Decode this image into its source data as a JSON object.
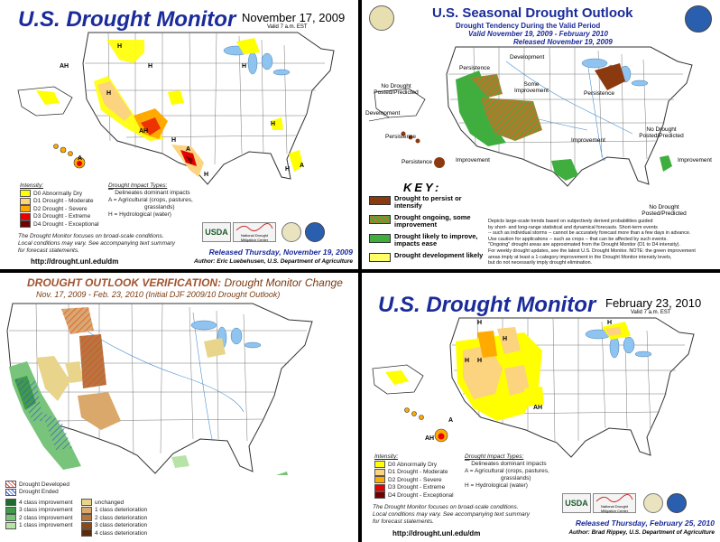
{
  "usdm1": {
    "title": "U.S. Drought Monitor",
    "date": "November 17, 2009",
    "valid": "Valid 7 a.m. EST",
    "intensity_heading": "Intensity:",
    "intensity": [
      {
        "label": "D0 Abnormally Dry",
        "color": "#ffff00"
      },
      {
        "label": "D1 Drought - Moderate",
        "color": "#fcd37f"
      },
      {
        "label": "D2 Drought - Severe",
        "color": "#ffaa00"
      },
      {
        "label": "D3 Drought - Extreme",
        "color": "#e60000"
      },
      {
        "label": "D4 Drought - Exceptional",
        "color": "#730000"
      }
    ],
    "impact_heading": "Drought Impact Types:",
    "impacts": [
      "Delineates dominant impacts",
      "A = Agricultural (crops, pastures,",
      "grasslands)",
      "H = Hydrological (water)"
    ],
    "note": [
      "The Drought Monitor focuses on broad-scale conditions.",
      "Local conditions may vary. See accompanying text summary",
      "for forecast statements."
    ],
    "url": "http://drought.unl.edu/dm",
    "released": "Released Thursday, November 19, 2009",
    "author": "Author: Eric Luebehusen, U.S. Department of Agriculture",
    "map_labels": [
      "AH",
      "H",
      "H",
      "H",
      "AH",
      "A",
      "H",
      "H",
      "H",
      "A",
      "H",
      "H",
      "A"
    ]
  },
  "outlook": {
    "title": "U.S. Seasonal Drought Outlook",
    "subtitle": "Drought Tendency During the Valid Period",
    "valid": "Valid November 19, 2009 - February 2010",
    "released": "Released November 19, 2009",
    "key_heading": "KEY:",
    "key": [
      {
        "label": "Drought to persist or intensify",
        "color": "#8b3a0f"
      },
      {
        "label": "Drought ongoing, some improvement",
        "color": "#b07a2a"
      },
      {
        "label": "Drought likely to improve, impacts ease",
        "color": "#3fae3f"
      },
      {
        "label": "Drought development likely",
        "color": "#ffff66"
      }
    ],
    "notes": [
      "Depicts large-scale trends based on subjectively derived probabilities guided",
      "by short- and long-range statistical and dynamical forecasts. Short-term events",
      "-- such as individual storms -- cannot be accurately forecast more than a few days in advance.",
      "Use caution for applications -- such as crops -- that can be affected by such events.",
      "\"Ongoing\" drought areas are approximated from the Drought Monitor (D1 to D4 intensity).",
      "For weekly drought updates, see the latest U.S. Drought Monitor. NOTE: the green improvement",
      "areas imply at least a 1-category improvement in the Drought Monitor intensity levels,",
      "but do not necessarily imply drought elimination."
    ],
    "map_labels": {
      "development_top": "Development",
      "persistence_1": "Persistence",
      "no_drought_left": "No Drought Posted/Predicted",
      "some_improvement": "Some Improvement",
      "persistence_2": "Persistence",
      "development_left": "Development",
      "persistence_3": "Persistence",
      "improvement_1": "Improvement",
      "persistence_4": "Persistence",
      "improvement_2": "Improvement",
      "no_drought_right": "No Drought Posted/Predicted",
      "improvement_3": "Improvement",
      "no_drought_pr": "No Drought Posted/Predicted"
    }
  },
  "verification": {
    "title_a": "DROUGHT OUTLOOK VERIFICATION:",
    "title_b": "Drought Monitor Change",
    "subtitle": "Nov. 17, 2009 - Feb. 23, 2010 (Initial DJF 2009/10 Drought Outlook)",
    "legend_top": [
      "Drought Developed",
      "Drought Ended"
    ],
    "legend_left": [
      {
        "label": "4 class improvement",
        "color": "#1f6b2f"
      },
      {
        "label": "3 class improvement",
        "color": "#3f9a4a"
      },
      {
        "label": "2 class improvement",
        "color": "#78c47a"
      },
      {
        "label": "1 class improvement",
        "color": "#b8e3a8"
      }
    ],
    "legend_right": [
      {
        "label": "unchanged",
        "color": "#e8d48a"
      },
      {
        "label": "1 class deterioration",
        "color": "#d9a86a"
      },
      {
        "label": "2 class deterioration",
        "color": "#b8763a"
      },
      {
        "label": "3 class deterioration",
        "color": "#8a4a1a"
      },
      {
        "label": "4 class deterioration",
        "color": "#5a2a0a"
      }
    ]
  },
  "usdm2": {
    "title": "U.S. Drought Monitor",
    "date": "February 23, 2010",
    "valid": "Valid 7 a.m. EST",
    "intensity_heading": "Intensity:",
    "intensity": [
      {
        "label": "D0 Abnormally Dry",
        "color": "#ffff00"
      },
      {
        "label": "D1 Drought - Moderate",
        "color": "#fcd37f"
      },
      {
        "label": "D2 Drought - Severe",
        "color": "#ffaa00"
      },
      {
        "label": "D3 Drought - Extreme",
        "color": "#e60000"
      },
      {
        "label": "D4 Drought - Exceptional",
        "color": "#730000"
      }
    ],
    "impact_heading": "Drought Impact Types:",
    "impacts": [
      "Delineates dominant impacts",
      "A = Agricultural (crops, pastures,",
      "grasslands)",
      "H = Hydrological (water)"
    ],
    "note": [
      "The Drought Monitor focuses on broad-scale conditions.",
      "Local conditions may vary. See accompanying text summary",
      "for forecast statements."
    ],
    "url": "http://drought.unl.edu/dm",
    "released": "Released Thursday, February 25, 2010",
    "author": "Author: Brad Rippey, U.S. Department of Agriculture",
    "map_labels": [
      "H",
      "H",
      "H",
      "H",
      "H",
      "AH",
      "A",
      "AH"
    ]
  },
  "logos": {
    "usda": "USDA",
    "ndmc": "National Drought Mitigation Center"
  },
  "colors": {
    "title_blue": "#1a2b9a",
    "water": "#8fc3f0",
    "state_border": "#444444"
  }
}
